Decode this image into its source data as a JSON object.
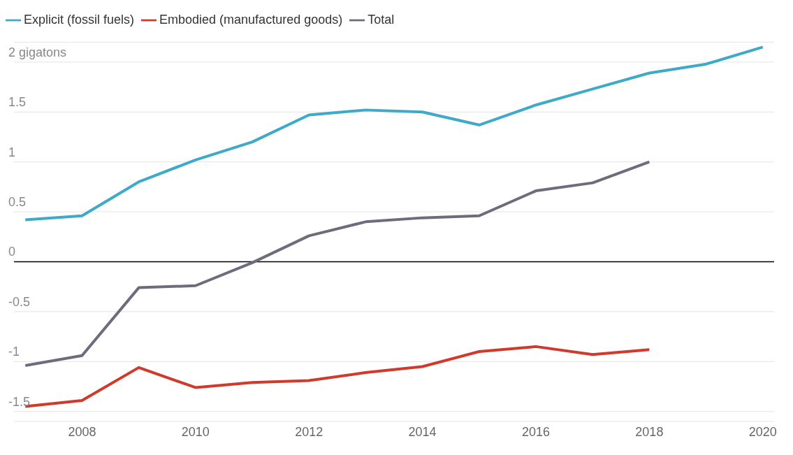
{
  "chart_data": {
    "type": "line",
    "x": [
      2007,
      2008,
      2009,
      2010,
      2011,
      2012,
      2013,
      2014,
      2015,
      2016,
      2017,
      2018,
      2019,
      2020
    ],
    "series": [
      {
        "name": "Explicit (fossil fuels)",
        "color": "#3fa9c9",
        "values": [
          0.42,
          0.46,
          0.8,
          1.02,
          1.2,
          1.47,
          1.52,
          1.5,
          1.37,
          1.57,
          1.73,
          1.89,
          1.98,
          2.15
        ]
      },
      {
        "name": "Embodied (manufactured goods)",
        "color": "#d03a2c",
        "values": [
          -1.45,
          -1.39,
          -1.06,
          -1.26,
          -1.21,
          -1.19,
          -1.11,
          -1.05,
          -0.9,
          -0.85,
          -0.93,
          -0.88,
          null,
          null
        ]
      },
      {
        "name": "Total",
        "color": "#6f6b7d",
        "values": [
          -1.04,
          -0.94,
          -0.26,
          -0.24,
          -0.01,
          0.26,
          0.4,
          0.44,
          0.46,
          0.71,
          0.79,
          1.0,
          null,
          null
        ]
      }
    ],
    "xlim": [
      2006.8,
      2020.2
    ],
    "xticks": [
      2008,
      2010,
      2012,
      2014,
      2016,
      2018,
      2020
    ],
    "ylim": [
      -1.6,
      2.2
    ],
    "yticks": [
      -1.5,
      -1,
      -0.5,
      0,
      0.5,
      1,
      1.5,
      {
        "value": 2,
        "label": "2 gigatons"
      }
    ],
    "ref_lines": [
      {
        "axis": "y",
        "value": 0,
        "color": "#000000"
      }
    ],
    "grid": "y",
    "legend": "top left",
    "marker": "none",
    "line_style": "solid"
  }
}
